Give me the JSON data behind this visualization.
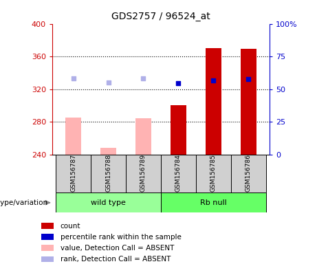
{
  "title": "GDS2757 / 96524_at",
  "samples": [
    "GSM156787",
    "GSM156788",
    "GSM156789",
    "GSM156784",
    "GSM156785",
    "GSM156786"
  ],
  "ylim": [
    240,
    400
  ],
  "yticks": [
    240,
    280,
    320,
    360,
    400
  ],
  "right_ylim": [
    0,
    100
  ],
  "right_yticks": [
    0,
    25,
    50,
    75,
    100
  ],
  "right_yticklabels": [
    "0",
    "25",
    "50",
    "75",
    "100%"
  ],
  "bar_bottom": 240,
  "bars_absent_value": [
    285,
    248,
    284,
    null,
    null,
    null
  ],
  "bars_present_value": [
    null,
    null,
    null,
    300,
    370,
    369
  ],
  "dots_absent_rank": [
    333,
    328,
    333,
    null,
    null,
    null
  ],
  "dots_present_rank": [
    null,
    null,
    null,
    327,
    331,
    332
  ],
  "bar_color_absent": "#ffb3b3",
  "bar_color_present": "#cc0000",
  "dot_color_absent": "#b0b0e8",
  "dot_color_present": "#0000cc",
  "dot_size": 25,
  "legend_items": [
    {
      "label": "count",
      "color": "#cc0000"
    },
    {
      "label": "percentile rank within the sample",
      "color": "#0000cc"
    },
    {
      "label": "value, Detection Call = ABSENT",
      "color": "#ffb3b3"
    },
    {
      "label": "rank, Detection Call = ABSENT",
      "color": "#b0b0e8"
    }
  ],
  "grid_color": "black",
  "left_tick_color": "#cc0000",
  "right_tick_color": "#0000cc",
  "wt_color": "#99ff99",
  "rb_color": "#66ff66",
  "label_box_color": "#d0d0d0",
  "main_axes": [
    0.165,
    0.415,
    0.685,
    0.495
  ],
  "label_axes": [
    0.165,
    0.27,
    0.685,
    0.145
  ],
  "group_axes": [
    0.165,
    0.195,
    0.685,
    0.075
  ],
  "legend_axes": [
    0.105,
    0.0,
    0.85,
    0.175
  ]
}
